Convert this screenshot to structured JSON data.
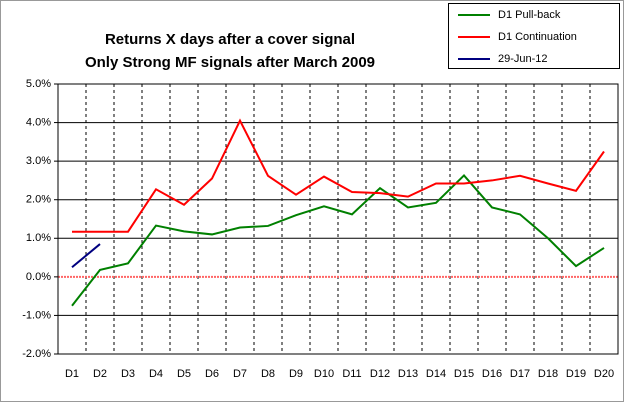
{
  "chart_data": {
    "type": "line",
    "title": "Returns X days after a cover signal",
    "subtitle": "Only Strong MF signals after March 2009",
    "categories": [
      "D1",
      "D2",
      "D3",
      "D4",
      "D5",
      "D6",
      "D7",
      "D8",
      "D9",
      "D10",
      "D11",
      "D12",
      "D13",
      "D14",
      "D15",
      "D16",
      "D17",
      "D18",
      "D19",
      "D20"
    ],
    "series": [
      {
        "name": "D1 Pull-back",
        "color": "#008000",
        "values": [
          -0.75,
          0.18,
          0.35,
          1.33,
          1.18,
          1.1,
          1.28,
          1.32,
          1.6,
          1.83,
          1.62,
          2.3,
          1.8,
          1.92,
          2.63,
          1.8,
          1.62,
          1.0,
          0.28,
          0.75
        ]
      },
      {
        "name": "D1 Continuation",
        "color": "#ff0000",
        "values": [
          1.17,
          1.17,
          1.17,
          2.27,
          1.87,
          2.55,
          4.05,
          2.62,
          2.13,
          2.6,
          2.2,
          2.17,
          2.08,
          2.42,
          2.42,
          2.5,
          2.62,
          2.42,
          2.23,
          3.25
        ]
      },
      {
        "name": "29-Jun-12",
        "color": "#000080",
        "values": [
          0.25,
          0.85,
          null,
          null,
          null,
          null,
          null,
          null,
          null,
          null,
          null,
          null,
          null,
          null,
          null,
          null,
          null,
          null,
          null,
          null
        ]
      }
    ],
    "ylim": [
      -2,
      5
    ],
    "yticks": [
      {
        "value": -2,
        "label": "-2.0%"
      },
      {
        "value": -1,
        "label": "-1.0%"
      },
      {
        "value": 0,
        "label": "0.0%"
      },
      {
        "value": 1,
        "label": "1.0%"
      },
      {
        "value": 2,
        "label": "2.0%"
      },
      {
        "value": 3,
        "label": "3.0%"
      },
      {
        "value": 4,
        "label": "4.0%"
      },
      {
        "value": 5,
        "label": "5.0%"
      }
    ],
    "grid": true,
    "legend": "top-right"
  }
}
